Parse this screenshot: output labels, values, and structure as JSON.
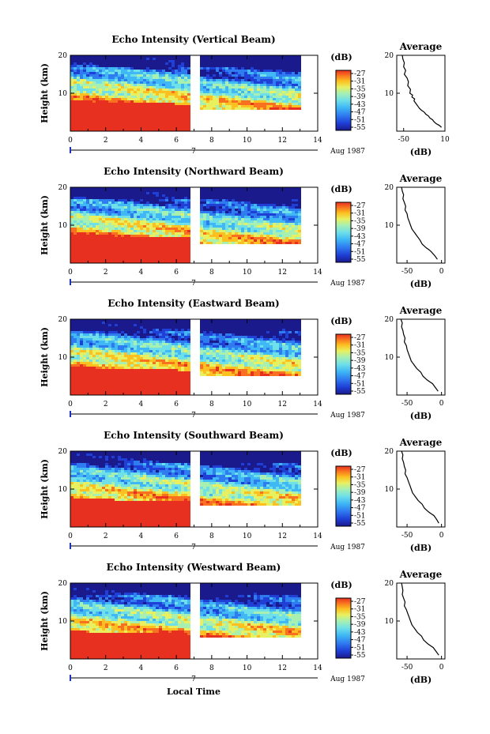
{
  "figure": {
    "xlabel": "Local Time",
    "date_label": "Aug 1987",
    "date_tick": "7",
    "colorbar_label": "(dB)",
    "colorbar_ticks": [
      "-27",
      "-31",
      "-35",
      "-39",
      "-43",
      "-47",
      "-51",
      "-55"
    ],
    "avg_title": "Average",
    "avg_xlabel": "(dB)",
    "ylabel": "Height (km)",
    "colors": [
      "#1a1a8c",
      "#1f3fd6",
      "#2f7cf0",
      "#3fb8f5",
      "#6fe0e8",
      "#a8f0b0",
      "#e8f060",
      "#fcc020",
      "#f87020",
      "#e83020"
    ]
  },
  "chart_data": [
    {
      "type": "heatmap",
      "title": "Echo Intensity (Vertical Beam)",
      "xlim": [
        0,
        14
      ],
      "ylim": [
        0,
        20
      ],
      "xticks": [
        "0",
        "2",
        "4",
        "6",
        "8",
        "10",
        "12",
        "14"
      ],
      "yticks": [
        "10",
        "20"
      ],
      "avg": {
        "title": "Average",
        "xticks": [
          "-50",
          "10"
        ],
        "xlim": [
          -60,
          10
        ],
        "ylim": [
          0,
          20
        ],
        "x": [
          -52,
          -51,
          -49,
          -50,
          -47,
          -49,
          -45,
          -43,
          -44,
          -40,
          -41,
          -37,
          -38,
          -34,
          -35,
          -31,
          -29,
          -27,
          -24,
          -20,
          -18,
          -14,
          -12,
          -8,
          -6,
          -3,
          2,
          5
        ],
        "y": [
          20,
          19,
          18,
          17,
          16,
          15,
          14,
          13,
          12,
          11,
          10,
          9.5,
          9,
          8.5,
          8,
          7,
          6.5,
          6,
          5.5,
          5,
          4.5,
          4,
          3.5,
          3,
          2.5,
          2,
          1.5,
          1
        ]
      }
    },
    {
      "type": "heatmap",
      "title": "Echo Intensity (Northward Beam)",
      "xlim": [
        0,
        14
      ],
      "ylim": [
        0,
        20
      ],
      "xticks": [
        "0",
        "2",
        "4",
        "6",
        "8",
        "10",
        "12",
        "14"
      ],
      "yticks": [
        "10",
        "20"
      ],
      "avg": {
        "title": "Average",
        "xticks": [
          "-50",
          "0"
        ],
        "xlim": [
          -65,
          5
        ],
        "ylim": [
          0,
          20
        ],
        "x": [
          -58,
          -57,
          -55,
          -56,
          -54,
          -52,
          -53,
          -50,
          -49,
          -47,
          -45,
          -43,
          -41,
          -39,
          -37,
          -35,
          -33,
          -31,
          -28,
          -25,
          -22,
          -18,
          -15,
          -10,
          -6
        ],
        "y": [
          20,
          19,
          18,
          17,
          16,
          15,
          14,
          13,
          12,
          11,
          10,
          9,
          8.5,
          8,
          7.5,
          7,
          6.5,
          6,
          5,
          4.5,
          4,
          3.5,
          3,
          2,
          1
        ]
      }
    },
    {
      "type": "heatmap",
      "title": "Echo Intensity (Eastward Beam)",
      "xlim": [
        0,
        14
      ],
      "ylim": [
        0,
        20
      ],
      "xticks": [
        "0",
        "2",
        "4",
        "6",
        "8",
        "10",
        "12",
        "14"
      ],
      "yticks": [
        "10",
        "20"
      ],
      "avg": {
        "title": "Average",
        "xticks": [
          "-50",
          "0"
        ],
        "xlim": [
          -65,
          5
        ],
        "ylim": [
          0,
          20
        ],
        "x": [
          -59,
          -57,
          -58,
          -56,
          -55,
          -53,
          -54,
          -51,
          -50,
          -48,
          -46,
          -44,
          -42,
          -40,
          -38,
          -36,
          -33,
          -30,
          -27,
          -24,
          -21,
          -17,
          -13,
          -9,
          -5
        ],
        "y": [
          20,
          19,
          18,
          17,
          16,
          15,
          14,
          13,
          12,
          11,
          10,
          9,
          8.5,
          8,
          7.5,
          7,
          6.5,
          6,
          5,
          4.5,
          4,
          3.5,
          3,
          2,
          1
        ]
      }
    },
    {
      "type": "heatmap",
      "title": "Echo Intensity (Southward Beam)",
      "xlim": [
        0,
        14
      ],
      "ylim": [
        0,
        20
      ],
      "xticks": [
        "0",
        "2",
        "4",
        "6",
        "8",
        "10",
        "12",
        "14"
      ],
      "yticks": [
        "10",
        "20"
      ],
      "avg": {
        "title": "Average",
        "xticks": [
          "-50",
          "0"
        ],
        "xlim": [
          -65,
          5
        ],
        "ylim": [
          0,
          20
        ],
        "x": [
          -58,
          -56,
          -57,
          -55,
          -54,
          -52,
          -53,
          -50,
          -48,
          -46,
          -44,
          -42,
          -40,
          -38,
          -36,
          -34,
          -31,
          -28,
          -25,
          -22,
          -19,
          -15,
          -11,
          -7,
          -4
        ],
        "y": [
          20,
          19,
          18,
          17,
          16,
          15,
          14,
          13,
          12,
          11,
          10,
          9,
          8.5,
          8,
          7.5,
          7,
          6.5,
          6,
          5,
          4.5,
          4,
          3.5,
          3,
          2,
          1
        ]
      }
    },
    {
      "type": "heatmap",
      "title": "Echo Intensity (Westward Beam)",
      "xlim": [
        0,
        14
      ],
      "ylim": [
        0,
        20
      ],
      "xticks": [
        "0",
        "2",
        "4",
        "6",
        "8",
        "10",
        "12",
        "14"
      ],
      "yticks": [
        "10",
        "20"
      ],
      "avg": {
        "title": "Average",
        "xticks": [
          "-50",
          "0"
        ],
        "xlim": [
          -65,
          5
        ],
        "ylim": [
          0,
          20
        ],
        "x": [
          -58,
          -57,
          -56,
          -57,
          -55,
          -53,
          -54,
          -51,
          -49,
          -47,
          -45,
          -43,
          -41,
          -39,
          -37,
          -35,
          -32,
          -29,
          -26,
          -23,
          -20,
          -16,
          -12,
          -8,
          -4
        ],
        "y": [
          20,
          19,
          18,
          17,
          16,
          15,
          14,
          13,
          12,
          11,
          10,
          9,
          8.5,
          8,
          7.5,
          7,
          6.5,
          6,
          5,
          4.5,
          4,
          3.5,
          3,
          2,
          1
        ]
      }
    }
  ]
}
